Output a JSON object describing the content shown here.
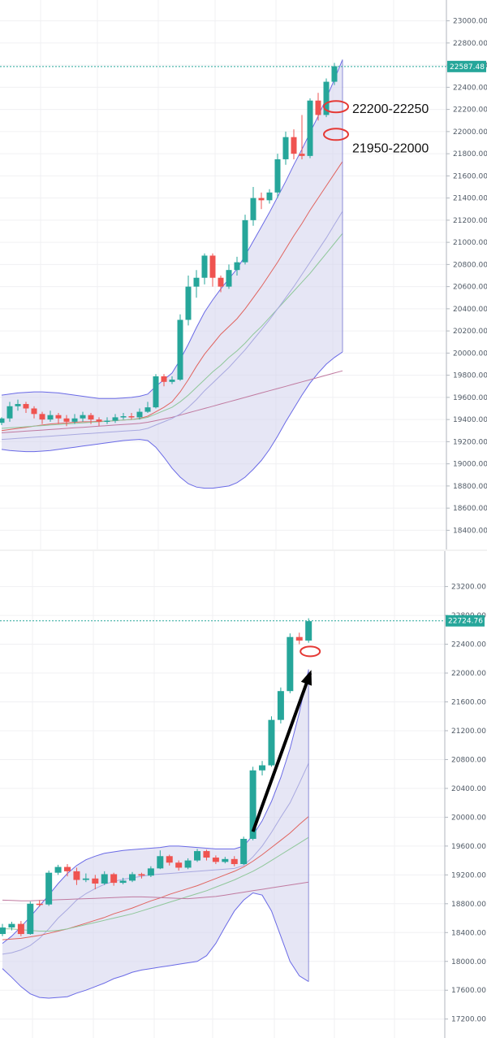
{
  "chart_data": [
    {
      "type": "candlestick",
      "title": "",
      "ylim": [
        18300,
        23100
      ],
      "y_ticks": [
        "23000.00",
        "22800.00",
        "22600.00",
        "22400.00",
        "22200.00",
        "22000.00",
        "21800.00",
        "21600.00",
        "21400.00",
        "21200.00",
        "21000.00",
        "20800.00",
        "20600.00",
        "20400.00",
        "20200.00",
        "20000.00",
        "19800.00",
        "19600.00",
        "19400.00",
        "19200.00",
        "19000.00",
        "18800.00",
        "18600.00",
        "18400.00"
      ],
      "last_price": "22587.48",
      "annotations": [
        "22200-22250",
        "21950-22000"
      ],
      "annotation_levels": [
        22225,
        21975
      ],
      "candles": [
        [
          19370,
          19410,
          19350,
          19420
        ],
        [
          19410,
          19520,
          19380,
          19560
        ],
        [
          19520,
          19540,
          19480,
          19580
        ],
        [
          19540,
          19500,
          19460,
          19560
        ],
        [
          19500,
          19450,
          19410,
          19520
        ],
        [
          19450,
          19400,
          19360,
          19470
        ],
        [
          19400,
          19440,
          19380,
          19480
        ],
        [
          19440,
          19410,
          19360,
          19460
        ],
        [
          19410,
          19380,
          19340,
          19440
        ],
        [
          19380,
          19410,
          19360,
          19450
        ],
        [
          19410,
          19440,
          19380,
          19470
        ],
        [
          19440,
          19400,
          19360,
          19460
        ],
        [
          19400,
          19380,
          19340,
          19420
        ],
        [
          19380,
          19390,
          19360,
          19420
        ],
        [
          19390,
          19420,
          19370,
          19450
        ],
        [
          19420,
          19430,
          19400,
          19460
        ],
        [
          19430,
          19420,
          19400,
          19460
        ],
        [
          19420,
          19470,
          19400,
          19500
        ],
        [
          19470,
          19510,
          19460,
          19560
        ],
        [
          19510,
          19790,
          19500,
          19810
        ],
        [
          19790,
          19740,
          19700,
          19810
        ],
        [
          19740,
          19760,
          19720,
          19790
        ],
        [
          19760,
          20300,
          19750,
          20350
        ],
        [
          20300,
          20600,
          20250,
          20700
        ],
        [
          20600,
          20680,
          20500,
          20750
        ],
        [
          20680,
          20880,
          20620,
          20900
        ],
        [
          20880,
          20680,
          20600,
          20900
        ],
        [
          20680,
          20600,
          20550,
          20700
        ],
        [
          20600,
          20750,
          20580,
          20800
        ],
        [
          20750,
          20820,
          20700,
          20870
        ],
        [
          20820,
          21200,
          20800,
          21250
        ],
        [
          21200,
          21400,
          21150,
          21500
        ],
        [
          21400,
          21380,
          21300,
          21450
        ],
        [
          21380,
          21450,
          21350,
          21480
        ],
        [
          21450,
          21750,
          21400,
          21800
        ],
        [
          21750,
          21950,
          21700,
          22000
        ],
        [
          21950,
          21800,
          21750,
          22020
        ],
        [
          21800,
          21780,
          21750,
          22150
        ],
        [
          21780,
          22280,
          21760,
          22300
        ],
        [
          22280,
          22150,
          22100,
          22350
        ],
        [
          22150,
          22450,
          22130,
          22480
        ],
        [
          22450,
          22590,
          22420,
          22620
        ]
      ],
      "series": [
        {
          "values": [
            19620,
            19630,
            19640,
            19645,
            19650,
            19650,
            19645,
            19640,
            19630,
            19620,
            19610,
            19600,
            19590,
            19590,
            19590,
            19595,
            19600,
            19610,
            19630,
            19700,
            19760,
            19820,
            19940,
            20080,
            20230,
            20370,
            20480,
            20580,
            20670,
            20760,
            20880,
            21010,
            21140,
            21270,
            21410,
            21550,
            21700,
            21840,
            21990,
            22140,
            22300,
            22470,
            22650
          ]
        },
        {
          "values": [
            19130,
            19120,
            19115,
            19110,
            19110,
            19115,
            19120,
            19130,
            19140,
            19150,
            19160,
            19170,
            19180,
            19190,
            19200,
            19210,
            19215,
            19220,
            19210,
            19150,
            19060,
            18960,
            18880,
            18820,
            18790,
            18780,
            18780,
            18790,
            18800,
            18830,
            18880,
            18950,
            19030,
            19130,
            19250,
            19380,
            19500,
            19620,
            19730,
            19820,
            19900,
            19960,
            20010
          ]
        },
        {
          "values": [
            19300,
            19310,
            19320,
            19330,
            19340,
            19350,
            19360,
            19365,
            19370,
            19375,
            19380,
            19380,
            19385,
            19385,
            19390,
            19395,
            19400,
            19410,
            19430,
            19470,
            19510,
            19560,
            19650,
            19760,
            19880,
            19990,
            20080,
            20170,
            20240,
            20310,
            20400,
            20500,
            20600,
            20710,
            20820,
            20940,
            21060,
            21170,
            21290,
            21400,
            21510,
            21620,
            21730
          ]
        },
        {
          "values": [
            19320,
            19325,
            19330,
            19335,
            19340,
            19345,
            19350,
            19355,
            19360,
            19365,
            19370,
            19375,
            19380,
            19385,
            19390,
            19395,
            19400,
            19405,
            19420,
            19450,
            19480,
            19510,
            19560,
            19620,
            19690,
            19760,
            19830,
            19890,
            19960,
            20020,
            20090,
            20170,
            20240,
            20320,
            20400,
            20480,
            20560,
            20640,
            20720,
            20810,
            20900,
            20990,
            21080
          ]
        },
        {
          "values": [
            19280,
            19285,
            19290,
            19295,
            19300,
            19305,
            19310,
            19315,
            19320,
            19325,
            19330,
            19335,
            19340,
            19345,
            19350,
            19355,
            19360,
            19365,
            19375,
            19390,
            19405,
            19420,
            19440,
            19460,
            19480,
            19500,
            19520,
            19540,
            19560,
            19580,
            19600,
            19620,
            19640,
            19660,
            19680,
            19700,
            19720,
            19740,
            19760,
            19780,
            19800,
            19820,
            19840
          ]
        },
        {
          "values": [
            19220,
            19225,
            19230,
            19235,
            19240,
            19245,
            19250,
            19255,
            19260,
            19265,
            19270,
            19275,
            19280,
            19285,
            19290,
            19295,
            19300,
            19305,
            19320,
            19350,
            19380,
            19410,
            19450,
            19510,
            19580,
            19660,
            19730,
            19800,
            19870,
            19950,
            20030,
            20120,
            20210,
            20300,
            20400,
            20500,
            20600,
            20710,
            20820,
            20930,
            21040,
            21160,
            21280
          ]
        }
      ],
      "colors": {
        "up": "#26a69a",
        "down": "#ef5350",
        "band_fill": "#d6d6ee",
        "band_line": "#6a6ae6",
        "ma_red": "#e0645f",
        "ma_green": "#8fc79a",
        "ma_purple": "#c07aa0",
        "ma_lavender": "#a9a9e0",
        "price_line": "#26a69a"
      }
    },
    {
      "type": "candlestick",
      "title": "",
      "ylim": [
        17050,
        23500
      ],
      "y_ticks": [
        "23200.00",
        "22800.00",
        "22400.00",
        "22000.00",
        "21600.00",
        "21200.00",
        "20800.00",
        "20400.00",
        "20000.00",
        "19600.00",
        "19200.00",
        "18800.00",
        "18400.00",
        "18000.00",
        "17600.00",
        "17200.00"
      ],
      "last_price": "22724.76",
      "candles": [
        [
          18380,
          18470,
          18350,
          18520
        ],
        [
          18470,
          18520,
          18430,
          18550
        ],
        [
          18520,
          18380,
          18350,
          18560
        ],
        [
          18380,
          18800,
          18370,
          18830
        ],
        [
          18800,
          18790,
          18760,
          18850
        ],
        [
          18790,
          19230,
          18770,
          19260
        ],
        [
          19230,
          19310,
          19200,
          19340
        ],
        [
          19310,
          19250,
          19180,
          19350
        ],
        [
          19250,
          19130,
          19060,
          19300
        ],
        [
          19130,
          19150,
          19100,
          19220
        ],
        [
          19150,
          19080,
          19000,
          19200
        ],
        [
          19080,
          19210,
          19060,
          19250
        ],
        [
          19210,
          19090,
          19050,
          19230
        ],
        [
          19090,
          19120,
          19070,
          19160
        ],
        [
          19120,
          19210,
          19100,
          19240
        ],
        [
          19210,
          19190,
          19150,
          19230
        ],
        [
          19190,
          19290,
          19170,
          19320
        ],
        [
          19290,
          19460,
          19280,
          19540
        ],
        [
          19460,
          19370,
          19330,
          19480
        ],
        [
          19370,
          19300,
          19260,
          19400
        ],
        [
          19300,
          19400,
          19280,
          19430
        ],
        [
          19400,
          19530,
          19380,
          19560
        ],
        [
          19530,
          19440,
          19400,
          19550
        ],
        [
          19440,
          19380,
          19350,
          19470
        ],
        [
          19380,
          19420,
          19360,
          19450
        ],
        [
          19420,
          19350,
          19320,
          19460
        ],
        [
          19350,
          19700,
          19340,
          19730
        ],
        [
          19700,
          20650,
          19680,
          20700
        ],
        [
          20650,
          20720,
          20580,
          20780
        ],
        [
          20720,
          21350,
          20700,
          21400
        ],
        [
          21350,
          21750,
          21300,
          21800
        ],
        [
          21750,
          22500,
          21720,
          22550
        ],
        [
          22500,
          22450,
          22400,
          22560
        ],
        [
          22450,
          22720,
          22420,
          22760
        ]
      ],
      "series": [
        {
          "values": [
            18250,
            18350,
            18480,
            18620,
            18770,
            18920,
            19080,
            19220,
            19330,
            19410,
            19460,
            19500,
            19520,
            19540,
            19550,
            19560,
            19570,
            19580,
            19600,
            19600,
            19590,
            19580,
            19570,
            19560,
            19560,
            19560,
            19600,
            19750,
            19950,
            20220,
            20550,
            20950,
            21450,
            22050
          ]
        },
        {
          "values": [
            17900,
            17780,
            17650,
            17550,
            17500,
            17490,
            17500,
            17510,
            17560,
            17600,
            17650,
            17700,
            17760,
            17800,
            17850,
            17880,
            17900,
            17920,
            17940,
            17960,
            17980,
            18000,
            18080,
            18250,
            18480,
            18700,
            18850,
            18950,
            18920,
            18700,
            18350,
            18000,
            17800,
            17720
          ]
        },
        {
          "values": [
            18100,
            18120,
            18160,
            18220,
            18320,
            18450,
            18600,
            18720,
            18850,
            18940,
            19010,
            19070,
            19110,
            19140,
            19160,
            19180,
            19200,
            19210,
            19220,
            19230,
            19240,
            19250,
            19260,
            19270,
            19280,
            19290,
            19330,
            19450,
            19600,
            19790,
            20000,
            20200,
            20470,
            20750
          ]
        },
        {
          "values": [
            18300,
            18310,
            18320,
            18340,
            18360,
            18390,
            18420,
            18450,
            18490,
            18530,
            18570,
            18610,
            18660,
            18700,
            18740,
            18790,
            18840,
            18880,
            18930,
            18970,
            19010,
            19050,
            19100,
            19150,
            19200,
            19250,
            19310,
            19390,
            19480,
            19580,
            19680,
            19780,
            19900,
            20010
          ]
        },
        {
          "values": [
            18450,
            18450,
            18440,
            18430,
            18420,
            18420,
            18430,
            18450,
            18480,
            18510,
            18540,
            18570,
            18600,
            18630,
            18660,
            18700,
            18740,
            18780,
            18820,
            18860,
            18900,
            18940,
            18980,
            19030,
            19080,
            19130,
            19190,
            19250,
            19320,
            19400,
            19480,
            19560,
            19640,
            19720
          ]
        },
        {
          "values": [
            18850,
            18845,
            18840,
            18840,
            18845,
            18850,
            18855,
            18860,
            18865,
            18870,
            18875,
            18880,
            18885,
            18890,
            18895,
            18895,
            18890,
            18885,
            18880,
            18875,
            18870,
            18880,
            18890,
            18900,
            18920,
            18940,
            18960,
            18980,
            19000,
            19020,
            19040,
            19060,
            19080,
            19100
          ]
        }
      ],
      "arrow": {
        "from": [
          27,
          19800
        ],
        "to": [
          33,
          22000
        ]
      },
      "colors": {
        "up": "#26a69a",
        "down": "#ef5350",
        "band_fill": "#d6d6ee",
        "band_line": "#6a6ae6",
        "ma_red": "#e0645f",
        "ma_green": "#8fc79a",
        "ma_purple": "#c07aa0",
        "ma_lavender": "#a9a9e0",
        "price_line": "#26a69a",
        "arrow": "#000000"
      }
    }
  ]
}
